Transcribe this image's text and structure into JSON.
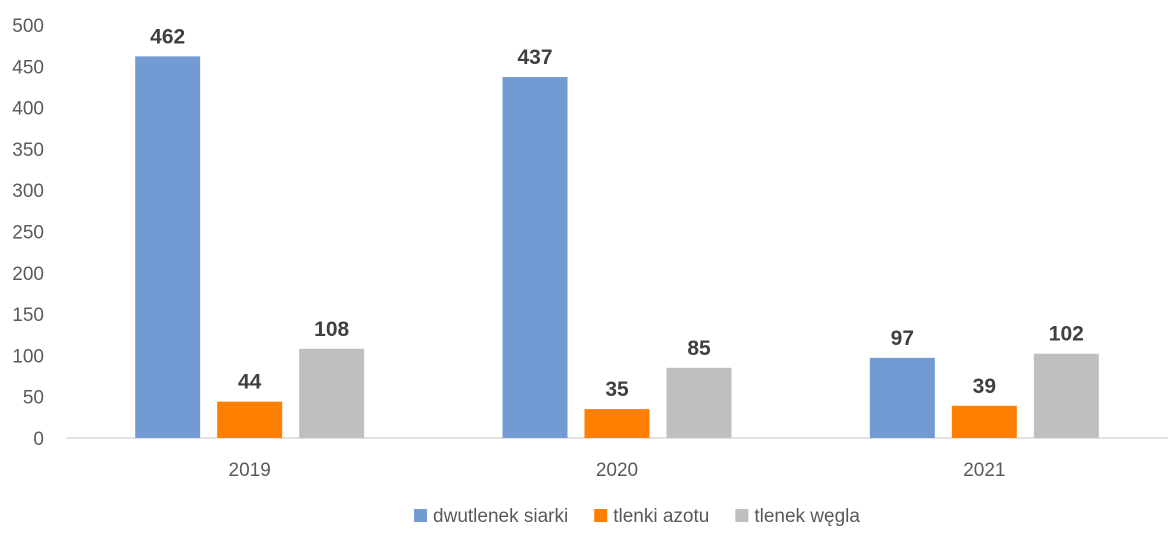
{
  "chart_data": {
    "type": "bar",
    "categories": [
      "2019",
      "2020",
      "2021"
    ],
    "series": [
      {
        "name": "dwutlenek siarki",
        "values": [
          462,
          437,
          97
        ],
        "color": "#729BD4"
      },
      {
        "name": "tlenki azotu",
        "values": [
          44,
          35,
          39
        ],
        "color": "#FF7F00"
      },
      {
        "name": "tlenek węgla",
        "values": [
          108,
          85,
          102
        ],
        "color": "#BFBFBF"
      }
    ],
    "ylim": [
      0,
      500
    ],
    "yticks": [
      0,
      50,
      100,
      150,
      200,
      250,
      300,
      350,
      400,
      450,
      500
    ],
    "grid": false,
    "legend_position": "bottom",
    "data_labels": true
  }
}
